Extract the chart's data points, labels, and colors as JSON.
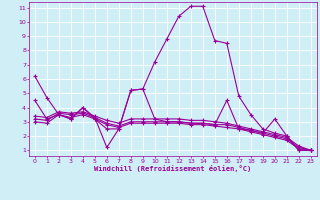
{
  "xlabel": "Windchill (Refroidissement éolien,°C)",
  "background_color": "#d0eef5",
  "grid_color": "#ffffff",
  "line_color": "#990099",
  "xlim": [
    -0.5,
    23.5
  ],
  "ylim": [
    0.6,
    11.4
  ],
  "xticks": [
    0,
    1,
    2,
    3,
    4,
    5,
    6,
    7,
    8,
    9,
    10,
    11,
    12,
    13,
    14,
    15,
    16,
    17,
    18,
    19,
    20,
    21,
    22,
    23
  ],
  "yticks": [
    1,
    2,
    3,
    4,
    5,
    6,
    7,
    8,
    9,
    10,
    11
  ],
  "series": [
    {
      "x": [
        0,
        1,
        2,
        3,
        4,
        5,
        6,
        7,
        8,
        9,
        10,
        11,
        12,
        13,
        14,
        15,
        16,
        17,
        18,
        19,
        20,
        21,
        22,
        23
      ],
      "y": [
        6.2,
        4.7,
        3.5,
        3.2,
        4.0,
        3.3,
        1.2,
        2.5,
        5.2,
        5.3,
        7.2,
        8.8,
        10.4,
        11.1,
        11.1,
        8.7,
        8.5,
        4.8,
        3.5,
        2.5,
        2.2,
        2.0,
        1.0,
        1.0
      ]
    },
    {
      "x": [
        0,
        1,
        2,
        3,
        4,
        5,
        6,
        7,
        8,
        9,
        10,
        11,
        12,
        13,
        14,
        15,
        16,
        17,
        18,
        19,
        20,
        21,
        22,
        23
      ],
      "y": [
        4.5,
        3.2,
        3.5,
        3.2,
        4.0,
        3.2,
        2.5,
        2.5,
        5.2,
        5.3,
        3.2,
        3.0,
        3.0,
        2.9,
        2.9,
        2.8,
        4.5,
        2.5,
        2.4,
        2.2,
        3.2,
        2.0,
        1.0,
        1.0
      ]
    },
    {
      "x": [
        0,
        1,
        2,
        3,
        4,
        5,
        6,
        7,
        8,
        9,
        10,
        11,
        12,
        13,
        14,
        15,
        16,
        17,
        18,
        19,
        20,
        21,
        22,
        23
      ],
      "y": [
        3.0,
        2.9,
        3.5,
        3.3,
        3.5,
        3.2,
        2.8,
        2.6,
        2.9,
        2.9,
        2.9,
        2.9,
        2.9,
        2.8,
        2.8,
        2.7,
        2.6,
        2.5,
        2.3,
        2.1,
        1.9,
        1.7,
        1.1,
        1.0
      ]
    },
    {
      "x": [
        0,
        1,
        2,
        3,
        4,
        5,
        6,
        7,
        8,
        9,
        10,
        11,
        12,
        13,
        14,
        15,
        16,
        17,
        18,
        19,
        20,
        21,
        22,
        23
      ],
      "y": [
        3.2,
        3.1,
        3.6,
        3.5,
        3.6,
        3.3,
        2.9,
        2.7,
        3.0,
        3.0,
        3.0,
        3.0,
        3.0,
        2.9,
        2.9,
        2.8,
        2.8,
        2.6,
        2.4,
        2.2,
        2.0,
        1.8,
        1.2,
        1.0
      ]
    },
    {
      "x": [
        0,
        1,
        2,
        3,
        4,
        5,
        6,
        7,
        8,
        9,
        10,
        11,
        12,
        13,
        14,
        15,
        16,
        17,
        18,
        19,
        20,
        21,
        22,
        23
      ],
      "y": [
        3.4,
        3.3,
        3.7,
        3.6,
        3.7,
        3.4,
        3.1,
        2.9,
        3.2,
        3.2,
        3.2,
        3.2,
        3.2,
        3.1,
        3.1,
        3.0,
        2.9,
        2.7,
        2.5,
        2.3,
        2.1,
        1.9,
        1.3,
        1.0
      ]
    }
  ]
}
